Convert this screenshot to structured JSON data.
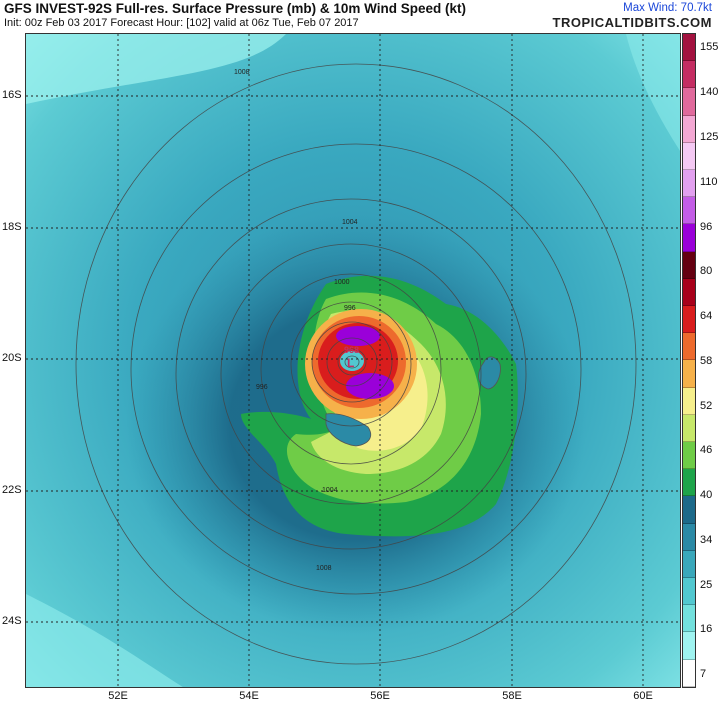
{
  "header": {
    "title": "GFS INVEST-92S Full-res. Surface Pressure (mb) & 10m Wind Speed (kt)",
    "subtitle": "Init: 00z Feb 03 2017   Forecast Hour: [102]   valid at 06z Tue, Feb 07 2017",
    "max_wind": "Max Wind: 70.7kt",
    "brand": "TROPICALTIDBITS.COM"
  },
  "map": {
    "lat_labels": [
      "16S",
      "18S",
      "20S",
      "22S",
      "24S"
    ],
    "lon_labels": [
      "52E",
      "54E",
      "56E",
      "58E",
      "60E"
    ],
    "isobar_labels": [
      "1008",
      "1004",
      "1000",
      "996",
      "1004",
      "1008",
      "996"
    ],
    "center_marker": "L",
    "center_pressure": "968"
  },
  "colorbar": {
    "labels": [
      "155",
      "140",
      "125",
      "110",
      "96",
      "80",
      "64",
      "58",
      "52",
      "46",
      "40",
      "34",
      "25",
      "16",
      "7"
    ],
    "colors": [
      "#ffffff",
      "#9ff3f0",
      "#73e0dd",
      "#52c8d0",
      "#3aa8bb",
      "#2b8aa6",
      "#1d6a8a",
      "#1ea44a",
      "#6fcc47",
      "#c7e86a",
      "#f6ef8c",
      "#f6b14a",
      "#ed6a2d",
      "#d91d1d",
      "#a8001a",
      "#650011",
      "#9a00d9",
      "#c35de6",
      "#e2a0ef",
      "#f4c9f3",
      "#f3a8d3",
      "#e06a9c",
      "#c42d62",
      "#a3123f"
    ]
  }
}
